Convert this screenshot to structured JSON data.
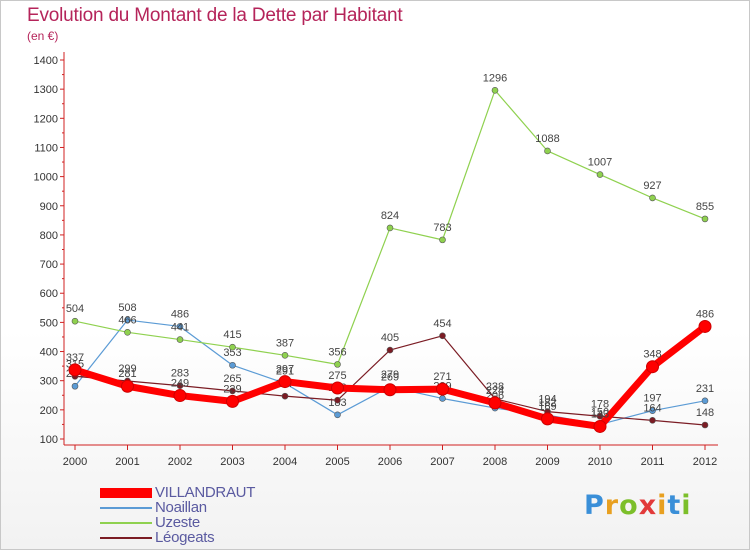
{
  "title": "Evolution du Montant de la Dette par Habitant",
  "unit_label": "(en €)",
  "logo": {
    "text": "Proxiti",
    "letter_colors": [
      "#3a8fd8",
      "#e8a020",
      "#7cbf2a",
      "#e23a3a",
      "#e8a020",
      "#3a8fd8",
      "#7cbf2a"
    ]
  },
  "chart_data": {
    "type": "line",
    "x": [
      "2000",
      "2001",
      "2002",
      "2003",
      "2004",
      "2005",
      "2006",
      "2007",
      "2008",
      "2009",
      "2010",
      "2011",
      "2012"
    ],
    "ylim": [
      100,
      1400
    ],
    "yticks": [
      "100",
      "200",
      "300",
      "400",
      "500",
      "600",
      "700",
      "800",
      "900",
      "1000",
      "1100",
      "1200",
      "1300",
      "1400"
    ],
    "grid": false,
    "legend": "bottom-left",
    "series": [
      {
        "name": "VILLANDRAUT",
        "color": "#ff0000",
        "emphasis": true,
        "values": [
          337,
          281,
          249,
          229,
          297,
          275,
          269,
          271,
          224,
          169,
          143,
          348,
          486
        ]
      },
      {
        "name": "Noaillan",
        "color": "#5b9bd5",
        "values": [
          281,
          508,
          486,
          353,
          291,
          183,
          279,
          239,
          206,
          182,
          150,
          197,
          231
        ]
      },
      {
        "name": "Uzeste",
        "color": "#8fd14f",
        "values": [
          504,
          466,
          441,
          415,
          387,
          356,
          824,
          783,
          1296,
          1088,
          1007,
          927,
          855
        ]
      },
      {
        "name": "Léogeats",
        "color": "#7b1c24",
        "values": [
          315,
          299,
          283,
          265,
          247,
          233,
          405,
          454,
          238,
          194,
          178,
          164,
          148
        ]
      }
    ]
  }
}
